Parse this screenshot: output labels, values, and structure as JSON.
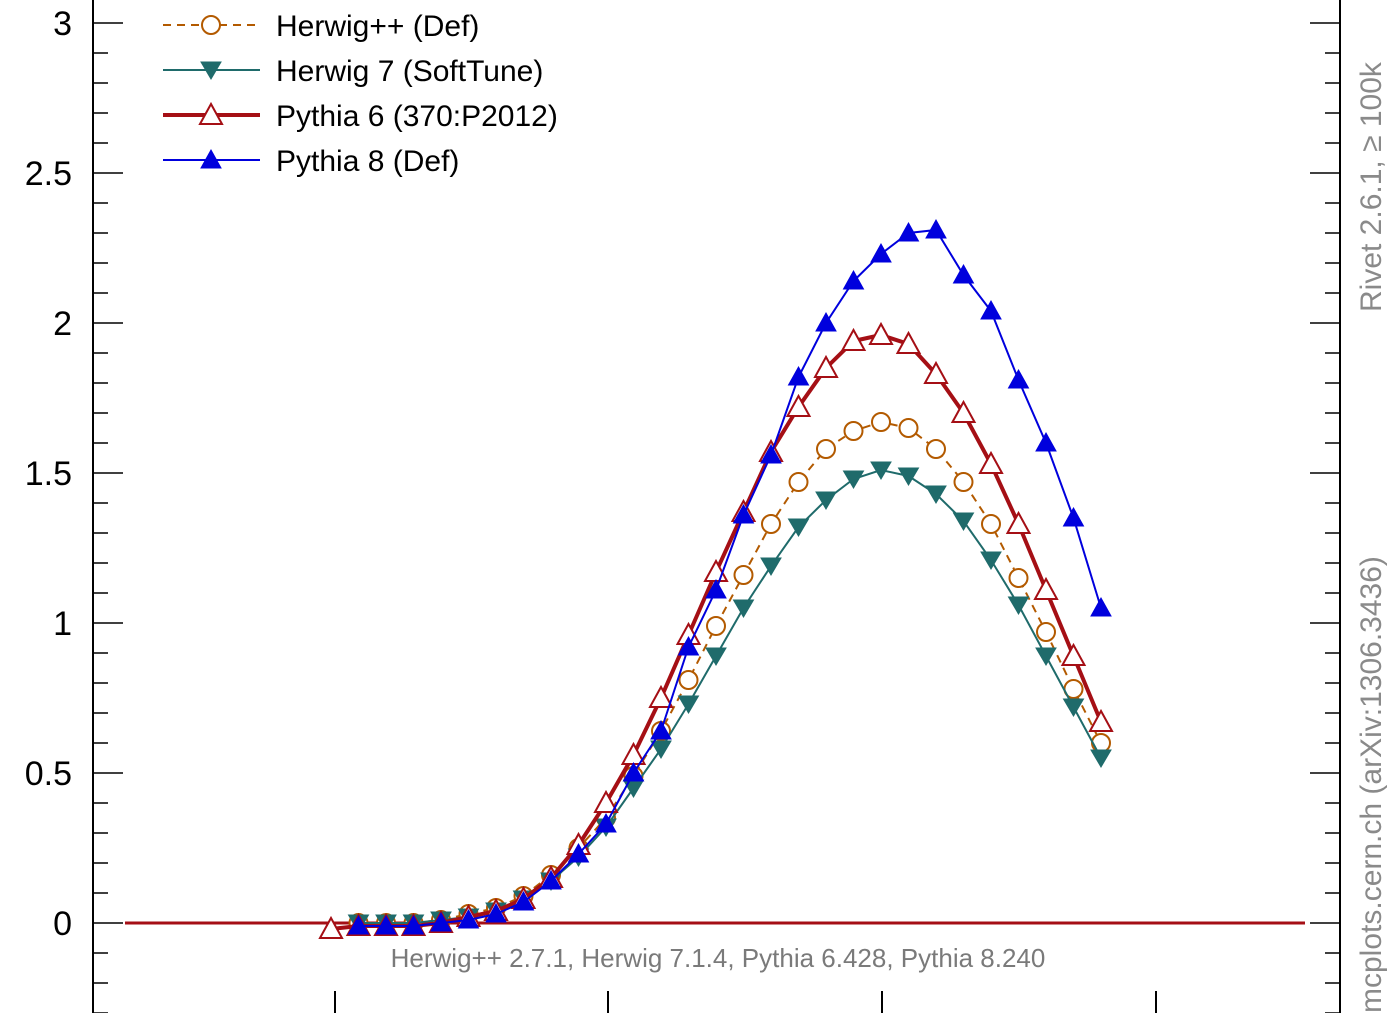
{
  "chart_data": {
    "type": "line",
    "ylim": [
      -0.35,
      3.1
    ],
    "xlim": [
      -1.5,
      1.5
    ],
    "y_ticks": [
      "3",
      "2.5",
      "2",
      "1.5",
      "1",
      "0.5",
      "0"
    ],
    "y_tick_values": [
      3,
      2.5,
      2,
      1.5,
      1,
      0.5,
      0
    ],
    "x": [
      -1.4,
      -1.3,
      -1.2,
      -1.1,
      -1.0,
      -0.9,
      -0.8,
      -0.7,
      -0.6,
      -0.5,
      -0.4,
      -0.3,
      -0.2,
      -0.1,
      0.0,
      0.1,
      0.2,
      0.3,
      0.4,
      0.5,
      0.6,
      0.7,
      0.8,
      0.9,
      1.0,
      1.1,
      1.2,
      1.3,
      1.4
    ],
    "series": [
      {
        "name": "Herwig++ (Def)",
        "color": "#b35a00",
        "marker": "open-circle",
        "style": "dashed",
        "x": [
          -1.3,
          -1.2,
          -1.1,
          -1.0,
          -0.9,
          -0.8,
          -0.7,
          -0.6,
          -0.5,
          -0.4,
          -0.3,
          -0.2,
          -0.1,
          0.0,
          0.1,
          0.2,
          0.3,
          0.4,
          0.5,
          0.6,
          0.7,
          0.8,
          0.9,
          1.0,
          1.1,
          1.2,
          1.3,
          1.4
        ],
        "values": [
          0.0,
          0.0,
          0.0,
          0.01,
          0.03,
          0.05,
          0.09,
          0.16,
          0.25,
          0.35,
          0.49,
          0.64,
          0.81,
          0.99,
          1.16,
          1.33,
          1.47,
          1.58,
          1.64,
          1.67,
          1.65,
          1.58,
          1.47,
          1.33,
          1.15,
          0.97,
          0.78,
          0.6
        ]
      },
      {
        "name": "Herwig 7 (SoftTune)",
        "color": "#1f6b6b",
        "marker": "filled-down-triangle",
        "style": "solid",
        "x": [
          -1.3,
          -1.2,
          -1.1,
          -1.0,
          -0.9,
          -0.8,
          -0.7,
          -0.6,
          -0.5,
          -0.4,
          -0.3,
          -0.2,
          -0.1,
          0.0,
          0.1,
          0.2,
          0.3,
          0.4,
          0.5,
          0.6,
          0.7,
          0.8,
          0.9,
          1.0,
          1.1,
          1.2,
          1.3,
          1.4
        ],
        "values": [
          0.0,
          0.0,
          0.0,
          0.01,
          0.02,
          0.04,
          0.08,
          0.14,
          0.22,
          0.32,
          0.45,
          0.58,
          0.73,
          0.89,
          1.05,
          1.19,
          1.32,
          1.41,
          1.48,
          1.51,
          1.49,
          1.43,
          1.34,
          1.21,
          1.06,
          0.89,
          0.72,
          0.55
        ]
      },
      {
        "name": "Pythia 6 (370:P2012)",
        "color": "#a50f15",
        "marker": "open-up-triangle",
        "style": "solid-thick",
        "x": [
          -1.4,
          -1.3,
          -1.2,
          -1.1,
          -1.0,
          -0.9,
          -0.8,
          -0.7,
          -0.6,
          -0.5,
          -0.4,
          -0.3,
          -0.2,
          -0.1,
          0.0,
          0.1,
          0.2,
          0.3,
          0.4,
          0.5,
          0.6,
          0.7,
          0.8,
          0.9,
          1.0,
          1.1,
          1.2,
          1.3,
          1.4
        ],
        "values": [
          -0.02,
          -0.01,
          -0.01,
          -0.01,
          0.0,
          0.02,
          0.04,
          0.08,
          0.15,
          0.26,
          0.4,
          0.56,
          0.75,
          0.96,
          1.17,
          1.37,
          1.57,
          1.72,
          1.85,
          1.94,
          1.96,
          1.93,
          1.83,
          1.7,
          1.53,
          1.33,
          1.11,
          0.89,
          0.67
        ]
      },
      {
        "name": "Pythia 8 (Def)",
        "color": "#0000dd",
        "marker": "filled-up-triangle",
        "style": "solid",
        "x": [
          -1.3,
          -1.2,
          -1.1,
          -1.0,
          -0.9,
          -0.8,
          -0.7,
          -0.6,
          -0.5,
          -0.4,
          -0.3,
          -0.2,
          -0.1,
          0.0,
          0.1,
          0.2,
          0.3,
          0.4,
          0.5,
          0.6,
          0.7,
          0.8,
          0.9,
          1.0,
          1.1,
          1.2,
          1.3,
          1.4
        ],
        "values": [
          -0.01,
          -0.01,
          -0.01,
          0.0,
          0.01,
          0.03,
          0.07,
          0.14,
          0.23,
          0.33,
          0.5,
          0.64,
          0.92,
          1.11,
          1.36,
          1.56,
          1.82,
          2.0,
          2.14,
          2.23,
          2.3,
          2.31,
          2.16,
          2.04,
          1.81,
          1.6,
          1.35,
          1.05
        ]
      }
    ],
    "footer": "Herwig++ 2.7.1, Herwig 7.1.4, Pythia 6.428, Pythia 8.240",
    "side_text": "mcplots.cern.ch (arXiv:1306.3436)",
    "side_text_top": "Rivet 2.6.1, ≥ 100k"
  }
}
